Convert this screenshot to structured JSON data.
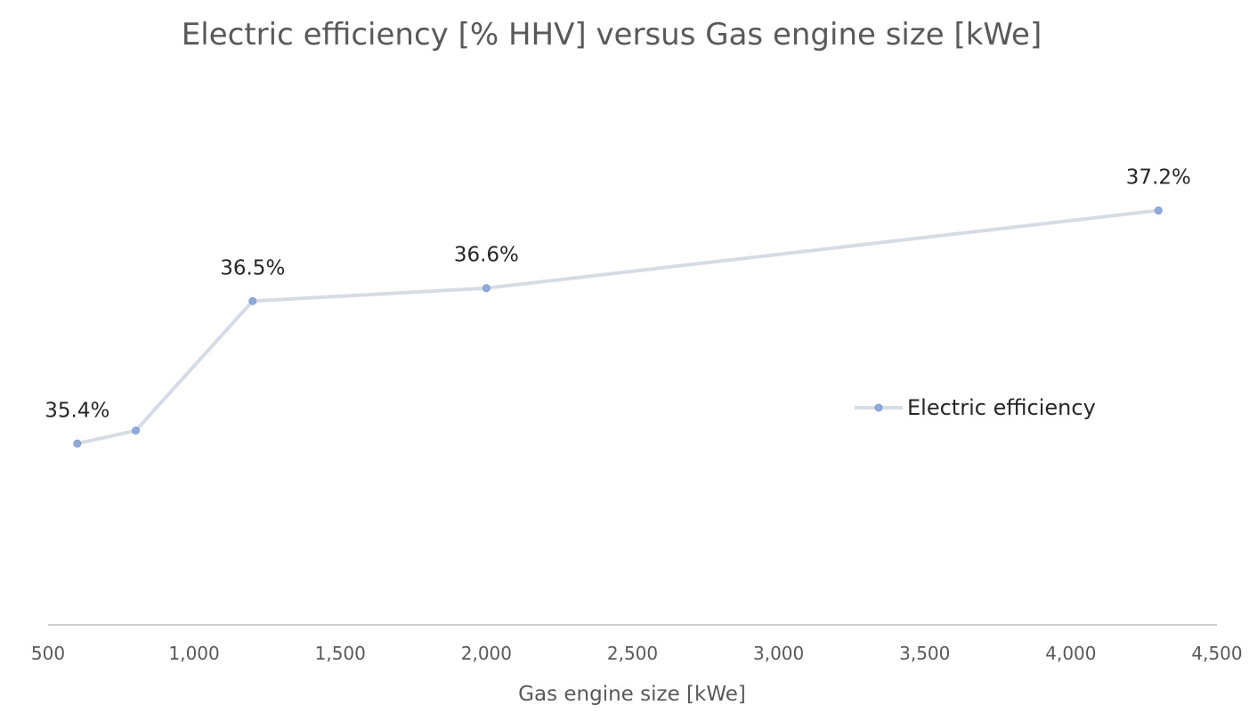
{
  "chart_data": {
    "type": "line",
    "title": "Electric efficiency [% HHV] versus Gas engine size [kWe]",
    "xlabel": "Gas engine size [kWe]",
    "ylabel": "",
    "xlim": [
      500,
      4500
    ],
    "ylim": [
      34,
      38
    ],
    "x_ticks": [
      500,
      1000,
      1500,
      2000,
      2500,
      3000,
      3500,
      4000,
      4500
    ],
    "x_tick_labels": [
      "500",
      "1,000",
      "1,500",
      "2,000",
      "2,500",
      "3,000",
      "3,500",
      "4,000",
      "4,500"
    ],
    "grid": false,
    "legend_position": "center-right",
    "series": [
      {
        "name": "Electric efficiency",
        "x": [
          600,
          800,
          1200,
          2000,
          4300
        ],
        "values": [
          35.4,
          35.5,
          36.5,
          36.6,
          37.2
        ],
        "data_labels": [
          "35.4%",
          "",
          "36.5%",
          "36.6%",
          "37.2%"
        ],
        "line_color": "#d6dce5",
        "marker_color": "#8faadc"
      }
    ]
  }
}
